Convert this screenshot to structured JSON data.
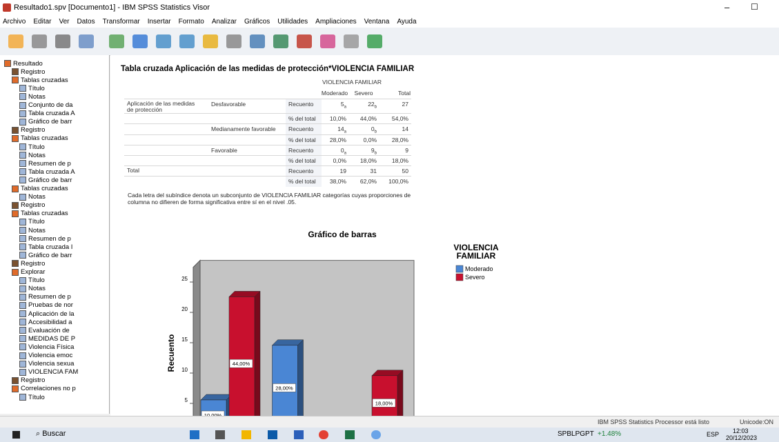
{
  "window": {
    "title": "Resultado1.spv [Documento1] - IBM SPSS Statistics Visor"
  },
  "menu": [
    "Archivo",
    "Editar",
    "Ver",
    "Datos",
    "Transformar",
    "Insertar",
    "Formato",
    "Analizar",
    "Gráficos",
    "Utilidades",
    "Ampliaciones",
    "Ventana",
    "Ayuda"
  ],
  "tree": {
    "label": "Resultado",
    "children": [
      {
        "label": "Registro"
      },
      {
        "label": "Tablas cruzadas",
        "children": [
          {
            "label": "Título"
          },
          {
            "label": "Notas"
          },
          {
            "label": "Conjunto de da"
          },
          {
            "label": "Tabla cruzada A"
          },
          {
            "label": "Gráfico de barr"
          }
        ]
      },
      {
        "label": "Registro"
      },
      {
        "label": "Tablas cruzadas",
        "children": [
          {
            "label": "Título"
          },
          {
            "label": "Notas"
          },
          {
            "label": "Resumen de p"
          },
          {
            "label": "Tabla cruzada A"
          },
          {
            "label": "Gráfico de barr"
          }
        ]
      },
      {
        "label": "Tablas cruzadas",
        "children": [
          {
            "label": "Notas"
          }
        ]
      },
      {
        "label": "Registro"
      },
      {
        "label": "Tablas cruzadas",
        "children": [
          {
            "label": "Título"
          },
          {
            "label": "Notas"
          },
          {
            "label": "Resumen de p"
          },
          {
            "label": "Tabla cruzada I"
          },
          {
            "label": "Gráfico de barr"
          }
        ]
      },
      {
        "label": "Registro"
      },
      {
        "label": "Explorar",
        "children": [
          {
            "label": "Título"
          },
          {
            "label": "Notas"
          },
          {
            "label": "Resumen de p"
          },
          {
            "label": "Pruebas de nor"
          },
          {
            "label": "Aplicación de la"
          },
          {
            "label": "Accesibilidad a"
          },
          {
            "label": "Evaluación de"
          },
          {
            "label": "MEDIDAS DE P"
          },
          {
            "label": "Violencia Física"
          },
          {
            "label": "Violencia emoc"
          },
          {
            "label": "Violencia sexua"
          },
          {
            "label": "VIOLENCIA FAM"
          }
        ]
      },
      {
        "label": "Registro"
      },
      {
        "label": "Correlaciones no p",
        "children": [
          {
            "label": "Título"
          }
        ]
      }
    ]
  },
  "table": {
    "title": "Tabla cruzada Aplicación de las medidas de protección*VIOLENCIA FAMILIAR",
    "col_group": "VIOLENCIA FAMILIAR",
    "columns": [
      "Moderado",
      "Severo",
      "Total"
    ],
    "rows": [
      [
        "Aplicación de las medidas de protección",
        "Desfavorable",
        "Recuento",
        {
          "value": "5",
          "sub": "a"
        },
        {
          "value": "22",
          "sub": "b"
        },
        "27"
      ],
      [
        null,
        null,
        "% del total",
        "10,0%",
        "44,0%",
        "54,0%"
      ],
      [
        null,
        "Medianamente favorable",
        "Recuento",
        {
          "value": "14",
          "sub": "a"
        },
        {
          "value": "0",
          "sub": "b"
        },
        "14"
      ],
      [
        null,
        null,
        "% del total",
        "28,0%",
        "0,0%",
        "28,0%"
      ],
      [
        null,
        "Favorable",
        "Recuento",
        {
          "value": "0",
          "sub": "a"
        },
        {
          "value": "9",
          "sub": "b"
        },
        "9"
      ],
      [
        null,
        null,
        "% del total",
        "0,0%",
        "18,0%",
        "18,0%"
      ],
      [
        "Total",
        null,
        "Recuento",
        "19",
        "31",
        "50"
      ],
      [
        null,
        null,
        "% del total",
        "38,0%",
        "62,0%",
        "100,0%"
      ]
    ],
    "footnote": "Cada letra del subíndice denota un subconjunto de VIOLENCIA FAMILIAR categorías cuyas proporciones de columna no difieren de forma significativa entre sí en el nivel .05."
  },
  "chart_data": {
    "type": "bar",
    "title": "Gráfico de barras",
    "y_label": "Recuento",
    "categories": [
      null,
      null,
      null
    ],
    "series": [
      {
        "name": "Moderado",
        "color": "#4a86d4",
        "values": [
          5,
          14,
          0
        ],
        "value_labels": [
          "10,00%",
          "28,00%",
          null
        ]
      },
      {
        "name": "Severo",
        "color": "#c8102e",
        "values": [
          22,
          0,
          9
        ],
        "value_labels": [
          "44,00%",
          null,
          "18,00%"
        ]
      }
    ],
    "ylim": [
      0,
      28
    ],
    "yticks": [
      5,
      10,
      15,
      20,
      25
    ],
    "legend_title": "VIOLENCIA FAMILIAR"
  },
  "status": {
    "message": "IBM SPSS Statistics Processor está listo",
    "encoding": "Unicode:ON"
  },
  "taskbar": {
    "search": "Buscar",
    "stock_name": "SPBLPGPT",
    "stock_change": "+1.48%",
    "language": "ESP",
    "time": "12:03",
    "date": "20/12/2023"
  }
}
